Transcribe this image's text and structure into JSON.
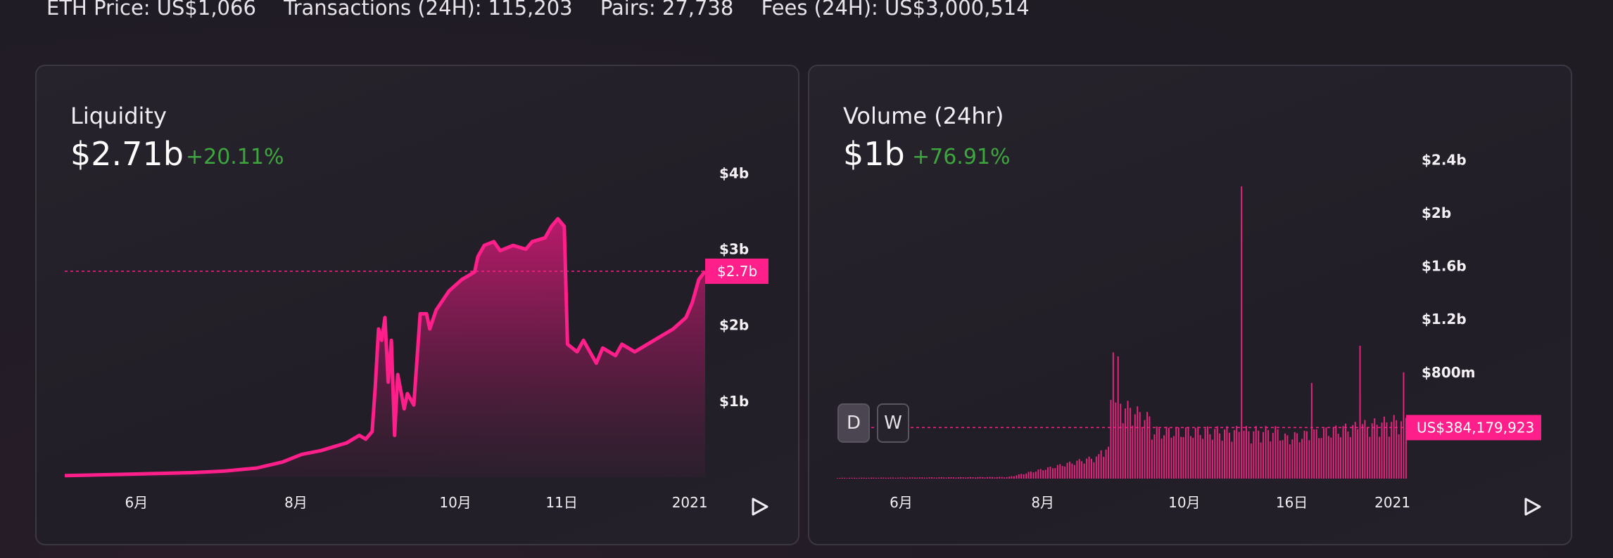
{
  "stats": {
    "eth_price": "ETH Price: US$1,066",
    "transactions": "Transactions (24H): 115,203",
    "pairs": "Pairs: 27,738",
    "fees": "Fees (24H): US$3,000,514"
  },
  "liquidity": {
    "title": "Liquidity",
    "value": "$2.71b",
    "change": "+20.11%"
  },
  "volume": {
    "title": "Volume (24hr)",
    "value": "$1b",
    "change": "+76.91%",
    "buttons": {
      "day": "D",
      "week": "W"
    }
  },
  "colors": {
    "accent": "#ff1f8a",
    "positive": "#3ea63f",
    "background": "#1f1c24"
  },
  "chart_data": [
    {
      "type": "area",
      "title": "Liquidity",
      "y_ticks": [
        "$4b",
        "$3b",
        "$2b",
        "$1b"
      ],
      "y_tick_values": [
        4,
        3,
        2,
        1
      ],
      "x_ticks": [
        "6月",
        "8月",
        "10月",
        "11日",
        "2021"
      ],
      "x_tick_positions": [
        0.112,
        0.361,
        0.61,
        0.776,
        0.976
      ],
      "current_label": "$2.7b",
      "current_value": 2.71,
      "unit": "billion USD",
      "ylim": [
        0,
        4.3
      ],
      "x": [
        0.0,
        0.05,
        0.1,
        0.15,
        0.2,
        0.25,
        0.3,
        0.34,
        0.37,
        0.4,
        0.42,
        0.44,
        0.46,
        0.47,
        0.48,
        0.485,
        0.49,
        0.495,
        0.5,
        0.505,
        0.51,
        0.515,
        0.52,
        0.53,
        0.535,
        0.545,
        0.555,
        0.565,
        0.57,
        0.58,
        0.6,
        0.62,
        0.64,
        0.645,
        0.655,
        0.67,
        0.68,
        0.7,
        0.72,
        0.73,
        0.75,
        0.76,
        0.77,
        0.78,
        0.785,
        0.8,
        0.81,
        0.83,
        0.84,
        0.86,
        0.87,
        0.89,
        0.91,
        0.93,
        0.95,
        0.97,
        0.975,
        0.98,
        0.99,
        1.0
      ],
      "values": [
        0.02,
        0.03,
        0.04,
        0.05,
        0.06,
        0.08,
        0.12,
        0.2,
        0.3,
        0.35,
        0.4,
        0.45,
        0.55,
        0.5,
        0.6,
        1.2,
        1.95,
        1.8,
        2.1,
        1.25,
        1.8,
        0.55,
        1.35,
        0.9,
        1.1,
        0.95,
        2.15,
        2.15,
        1.95,
        2.2,
        2.45,
        2.6,
        2.7,
        2.9,
        3.05,
        3.1,
        2.98,
        3.05,
        3.0,
        3.1,
        3.15,
        3.3,
        3.4,
        3.3,
        1.75,
        1.65,
        1.8,
        1.5,
        1.7,
        1.6,
        1.75,
        1.65,
        1.75,
        1.85,
        1.95,
        2.1,
        2.2,
        2.3,
        2.6,
        2.71
      ]
    },
    {
      "type": "bar",
      "title": "Volume (24hr)",
      "y_ticks": [
        "$2.4b",
        "$2b",
        "$1.6b",
        "$1.2b",
        "$800m"
      ],
      "y_tick_values": [
        2.4,
        2.0,
        1.6,
        1.2,
        0.8
      ],
      "x_ticks": [
        "6月",
        "8月",
        "10月",
        "16日",
        "2021"
      ],
      "x_tick_positions": [
        0.112,
        0.361,
        0.61,
        0.799,
        0.976
      ],
      "current_label": "US$384,179,923",
      "current_value": 0.384,
      "unit": "billion USD",
      "ylim": [
        0,
        2.55
      ],
      "bar_count": 236,
      "spikes": [
        {
          "pos": 0.71,
          "value": 2.2
        },
        {
          "pos": 0.836,
          "value": 0.72
        },
        {
          "pos": 0.92,
          "value": 1.0
        },
        {
          "pos": 0.995,
          "value": 0.8
        },
        {
          "pos": 0.485,
          "value": 0.95
        },
        {
          "pos": 0.495,
          "value": 0.92
        }
      ]
    }
  ]
}
